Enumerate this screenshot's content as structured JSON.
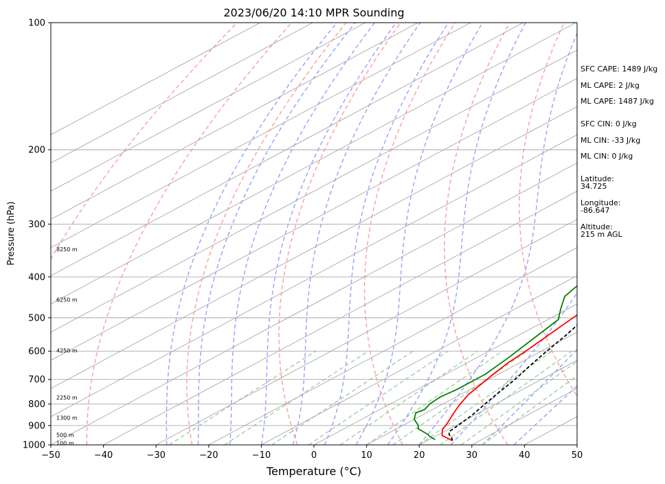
{
  "title": "2023/06/20 14:10 MPR Sounding",
  "chart_data": {
    "type": "skew-t",
    "title": "2023/06/20 14:10 MPR Sounding",
    "xlabel": "Temperature (°C)",
    "ylabel": "Pressure (hPa)",
    "xlim": [
      -50,
      50
    ],
    "ylim": [
      1000,
      100
    ],
    "y_scale": "log",
    "x_ticks": [
      -50,
      -40,
      -30,
      -20,
      -10,
      0,
      10,
      20,
      30,
      40,
      50
    ],
    "x_tick_labels": [
      "−50",
      "−40",
      "−30",
      "−20",
      "−10",
      "0",
      "10",
      "20",
      "30",
      "40",
      "50"
    ],
    "y_ticks": [
      1000,
      900,
      800,
      700,
      600,
      500,
      400,
      300,
      200,
      100
    ],
    "y_tick_labels": [
      "1000",
      "900",
      "800",
      "700",
      "600",
      "500",
      "400",
      "300",
      "200",
      "100"
    ],
    "isotherm_spacing_c": 10,
    "dry_adiabat_thetas_k": [
      210,
      230,
      250,
      270,
      290,
      310,
      330,
      350,
      370,
      390,
      410,
      430,
      450,
      470
    ],
    "moist_adiabat_start_c": [
      -28,
      -22,
      -16,
      -10,
      -4,
      2,
      8,
      14,
      20,
      26,
      32,
      38
    ],
    "mixing_ratio_line_start_temps_c": [
      -27.5,
      -17,
      -8,
      -1,
      5,
      10,
      15,
      20,
      24,
      28,
      32
    ],
    "mixing_ratio_top_hpa": 600,
    "series": [
      {
        "name": "",
        "kind": "temperature",
        "color": "#ff0000",
        "x": [
          24.8,
          21.0,
          19.0,
          17.5,
          15.5,
          13.5,
          11.5,
          10.3,
          9.0,
          7.8,
          7.0,
          5.5,
          4.0,
          2.0,
          -1.5,
          -5.0,
          -8.5,
          -10.5,
          -14.5
        ],
        "y": [
          977,
          950,
          920,
          885,
          845,
          805,
          760,
          720,
          680,
          640,
          600,
          545,
          495,
          455,
          410,
          370,
          335,
          310,
          277
        ]
      },
      {
        "name": "",
        "kind": "dewpoint",
        "color": "#008000",
        "x": [
          21.2,
          19.0,
          18.0,
          16.0,
          14.0,
          13.0,
          11.5,
          10.0,
          9.0,
          8.0,
          8.5,
          7.5,
          7.0,
          7.5,
          7.5,
          6.0,
          4.0,
          2.0,
          -1.5,
          -5.0,
          -7.0,
          -9.5,
          -14.0,
          -15.5,
          -16.0,
          -17.0,
          -20.0,
          -22.0,
          -22.5
        ],
        "y": [
          972,
          955,
          945,
          930,
          915,
          900,
          885,
          870,
          855,
          840,
          825,
          800,
          770,
          740,
          680,
          620,
          560,
          505,
          475,
          445,
          410,
          380,
          350,
          330,
          320,
          310,
          300,
          288,
          278
        ]
      },
      {
        "name": "",
        "kind": "parcel",
        "color": "#000000",
        "dashed": true,
        "x": [
          24.8,
          23.5,
          22.0,
          21.0,
          20.5,
          19.5,
          18.0,
          16.5,
          15.0,
          13.0,
          11.0,
          9.0,
          6.5,
          3.5,
          0.0,
          -4.0,
          -7.5,
          -11.0
        ],
        "y": [
          977,
          960,
          945,
          930,
          900,
          850,
          800,
          750,
          700,
          650,
          600,
          550,
          500,
          450,
          400,
          350,
          310,
          280
        ]
      }
    ],
    "height_labels": [
      {
        "text": "100 m",
        "p": 995
      },
      {
        "text": "500 m",
        "p": 950
      },
      {
        "text": "1300 m",
        "p": 865
      },
      {
        "text": "2250 m",
        "p": 775
      },
      {
        "text": "4250 m",
        "p": 600
      },
      {
        "text": "6250 m",
        "p": 455
      },
      {
        "text": "8250 m",
        "p": 345
      }
    ],
    "grid": true
  },
  "info": {
    "sfc_cape": "SFC CAPE: 1489 J/kg",
    "ml_cape_1": "ML CAPE: 2 J/kg",
    "ml_cape_2": "ML CAPE: 1487 J/kg",
    "sfc_cin": "SFC CIN: 0 J/kg",
    "ml_cin_1": "ML CIN: -33 J/kg",
    "ml_cin_2": "ML CIN: 0 J/kg",
    "lat_label": "Latitude:",
    "lat_value": "34.725",
    "lon_label": "Longitude:",
    "lon_value": "-86.647",
    "alt_label": "Altitude:",
    "alt_value": "215 m AGL"
  },
  "colors": {
    "temperature": "#ff0000",
    "dewpoint": "#008000",
    "parcel": "#000000",
    "isotherm": "#a8a8a8",
    "isobar": "#a8a8a8",
    "dry_adiabat": "#ff9b9b",
    "moist_adiabat": "#9b9bff",
    "mixing_ratio": "#9dcf9d"
  }
}
